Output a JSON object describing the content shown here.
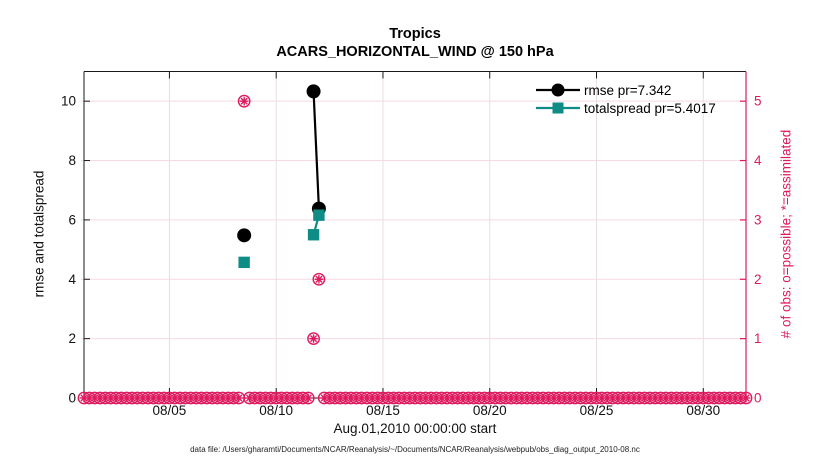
{
  "figure": {
    "title": "Tropics",
    "subtitle": "ACARS_HORIZONTAL_WIND @ 150 hPa",
    "caption": "data file: /Users/gharamti/Documents/NCAR/Reanalysis/~/Documents/NCAR/Reanalysis/webpub/obs_diag_output_2010-08.nc"
  },
  "legend": {
    "items": [
      {
        "label": "rmse pr=7.342",
        "series": "rmse"
      },
      {
        "label": "totalspread pr=5.4017",
        "series": "totalspread"
      }
    ]
  },
  "colors": {
    "rmse": "#000000",
    "totalspread": "#0e8c85",
    "obs": "#de1a5e",
    "grid_horizontal": "#f8d9e4",
    "grid_vertical": "#e9dee2",
    "axis_dark": "#1a1a1a"
  },
  "chart_data": {
    "type": "line",
    "title": "Tropics",
    "subtitle": "ACARS_HORIZONTAL_WIND @ 150 hPa",
    "xlabel": "Aug.01,2010 00:00:00 start",
    "ylabel_left": "rmse and totalspread",
    "ylabel_right": "# of obs: o=possible; *=assimilated",
    "x_range_days": [
      1,
      32
    ],
    "ylim_left": [
      0,
      11
    ],
    "ylim_right": [
      0,
      5.5
    ],
    "x_ticks": [
      {
        "day": 5,
        "label": "08/05"
      },
      {
        "day": 10,
        "label": "08/10"
      },
      {
        "day": 15,
        "label": "08/15"
      },
      {
        "day": 20,
        "label": "08/20"
      },
      {
        "day": 25,
        "label": "08/25"
      },
      {
        "day": 30,
        "label": "08/30"
      }
    ],
    "left_ticks": [
      0,
      2,
      4,
      6,
      8,
      10
    ],
    "right_ticks": [
      0,
      1,
      2,
      3,
      4,
      5
    ],
    "series": [
      {
        "name": "rmse pr=7.342",
        "color": "#000000",
        "marker": "circle",
        "segments": [
          [
            {
              "day": 8.5,
              "value": 5.48
            }
          ],
          [
            {
              "day": 11.75,
              "value": 10.33
            },
            {
              "day": 12.0,
              "value": 6.38
            }
          ]
        ]
      },
      {
        "name": "totalspread pr=5.4017",
        "color": "#0e8c85",
        "marker": "square",
        "segments": [
          [
            {
              "day": 8.5,
              "value": 4.57
            }
          ],
          [
            {
              "day": 11.75,
              "value": 5.5
            },
            {
              "day": 12.0,
              "value": 6.16
            }
          ]
        ]
      }
    ],
    "observations": {
      "marker": "circle-asterisk",
      "axis": "right",
      "nonzero": [
        {
          "day": 8.5,
          "count": 5
        },
        {
          "day": 11.75,
          "count": 1
        },
        {
          "day": 12.0,
          "count": 2
        }
      ],
      "zero_row": {
        "start_day": 1,
        "end_day": 32,
        "step_day": 0.25,
        "skip_days": [
          8.5,
          11.75,
          12.0
        ]
      }
    }
  }
}
